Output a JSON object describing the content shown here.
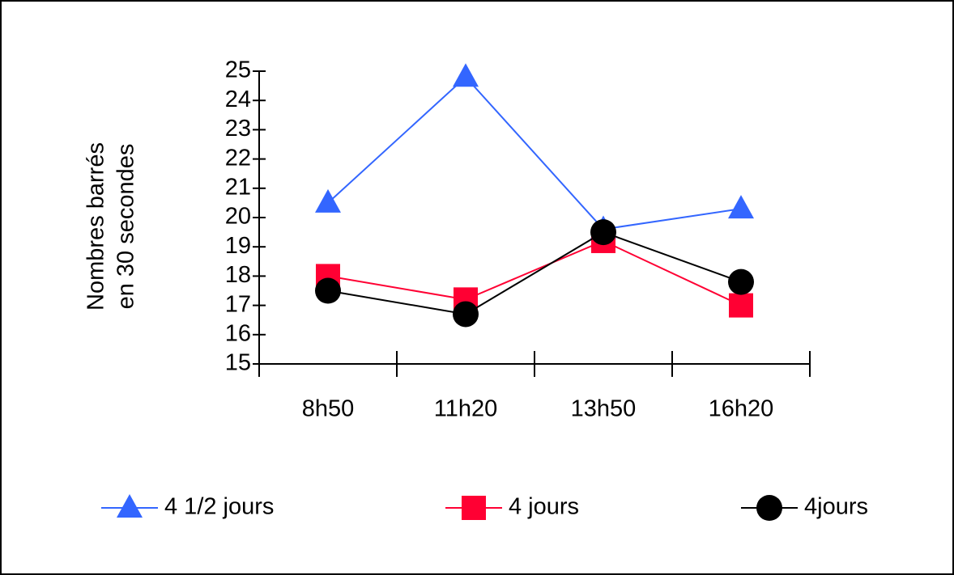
{
  "chart_data": {
    "type": "line",
    "y_label": [
      "Nombres barrés",
      "en 30 secondes"
    ],
    "categories": [
      "8h50",
      "11h20",
      "13h50",
      "16h20"
    ],
    "series": [
      {
        "name": "4 1/2 jours",
        "color": "#3366ff",
        "marker": "triangle",
        "values": [
          20.5,
          24.8,
          19.6,
          20.3
        ]
      },
      {
        "name": "4 jours",
        "color": "#ff0033",
        "marker": "square",
        "values": [
          18.0,
          17.2,
          19.2,
          17.0
        ]
      },
      {
        "name": "4jours",
        "color": "#000000",
        "marker": "circle",
        "values": [
          17.5,
          16.7,
          19.5,
          17.8
        ]
      }
    ],
    "ylim": [
      15,
      25
    ],
    "yticks": [
      15,
      16,
      17,
      18,
      19,
      20,
      21,
      22,
      23,
      24,
      25
    ],
    "legend": "bottom"
  }
}
